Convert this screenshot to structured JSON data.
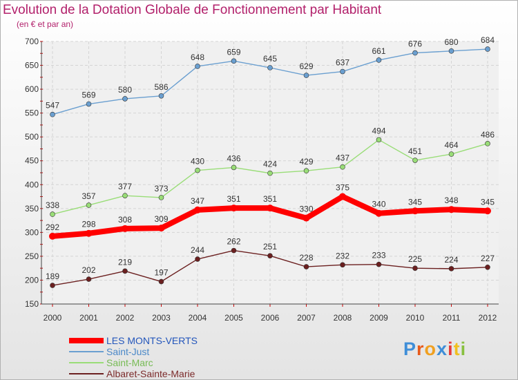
{
  "chart_data": {
    "type": "line",
    "title": "Evolution de la Dotation Globale de Fonctionnement par Habitant",
    "subtitle": "(en € et par an)",
    "x": [
      "2000",
      "2001",
      "2002",
      "2003",
      "2004",
      "2005",
      "2006",
      "2007",
      "2008",
      "2009",
      "2010",
      "2011",
      "2012"
    ],
    "ylim": [
      150,
      700
    ],
    "yticks": [
      150,
      200,
      250,
      300,
      350,
      400,
      450,
      500,
      550,
      600,
      650,
      700
    ],
    "grid": true,
    "legend_position": "bottom-left",
    "series": [
      {
        "name": "LES MONTS-VERTS",
        "color": "#ff0000",
        "values": [
          292,
          298,
          308,
          309,
          347,
          351,
          351,
          330,
          375,
          340,
          345,
          348,
          345
        ]
      },
      {
        "name": "Saint-Just",
        "color": "#6a9fd0",
        "values": [
          547,
          569,
          580,
          586,
          648,
          659,
          645,
          629,
          637,
          661,
          676,
          680,
          684
        ]
      },
      {
        "name": "Saint-Marc",
        "color": "#99dd77",
        "values": [
          338,
          357,
          377,
          373,
          430,
          436,
          424,
          429,
          437,
          494,
          451,
          464,
          486
        ]
      },
      {
        "name": "Albaret-Sainte-Marie",
        "color": "#6b1f1f",
        "values": [
          189,
          202,
          219,
          197,
          244,
          262,
          251,
          228,
          232,
          233,
          225,
          224,
          227
        ]
      }
    ]
  },
  "logo": {
    "letters": [
      "P",
      "r",
      "o",
      "x",
      "i",
      "t",
      "i"
    ],
    "colors": [
      "#3f8ed8",
      "#e85a1a",
      "#f0a020",
      "#3f8ed8",
      "#e83a3a",
      "#f0c020",
      "#88c040"
    ]
  }
}
